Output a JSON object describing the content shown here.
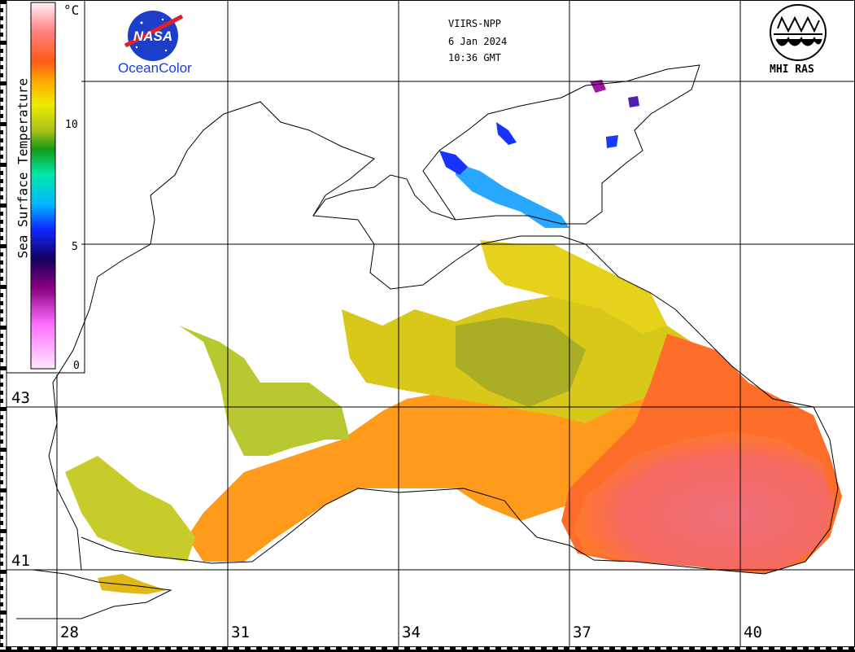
{
  "header": {
    "sensor": "VIIRS-NPP",
    "date": "6 Jan 2024",
    "time": "10:36 GMT"
  },
  "logos": {
    "nasa_mark": "NASA",
    "nasa_caption": "OceanColor",
    "mhi_caption": "MHI RAS"
  },
  "color_scale": {
    "title": "Sea Surface Temperature",
    "unit": "°C",
    "ticks": [
      "10",
      "5",
      "0"
    ],
    "colors": [
      "#fff0f8",
      "#ff7a7a",
      "#ff6a1f",
      "#ffb800",
      "#e8e800",
      "#b4c21c",
      "#1ea01e",
      "#00e8b0",
      "#00b8ff",
      "#1030ff",
      "#1a0060",
      "#a00090",
      "#ff80ff",
      "#ffe8ff"
    ]
  },
  "graticule": {
    "longitudes": [
      "28",
      "31",
      "34",
      "37",
      "40"
    ],
    "latitudes": [
      "43",
      "41"
    ]
  }
}
